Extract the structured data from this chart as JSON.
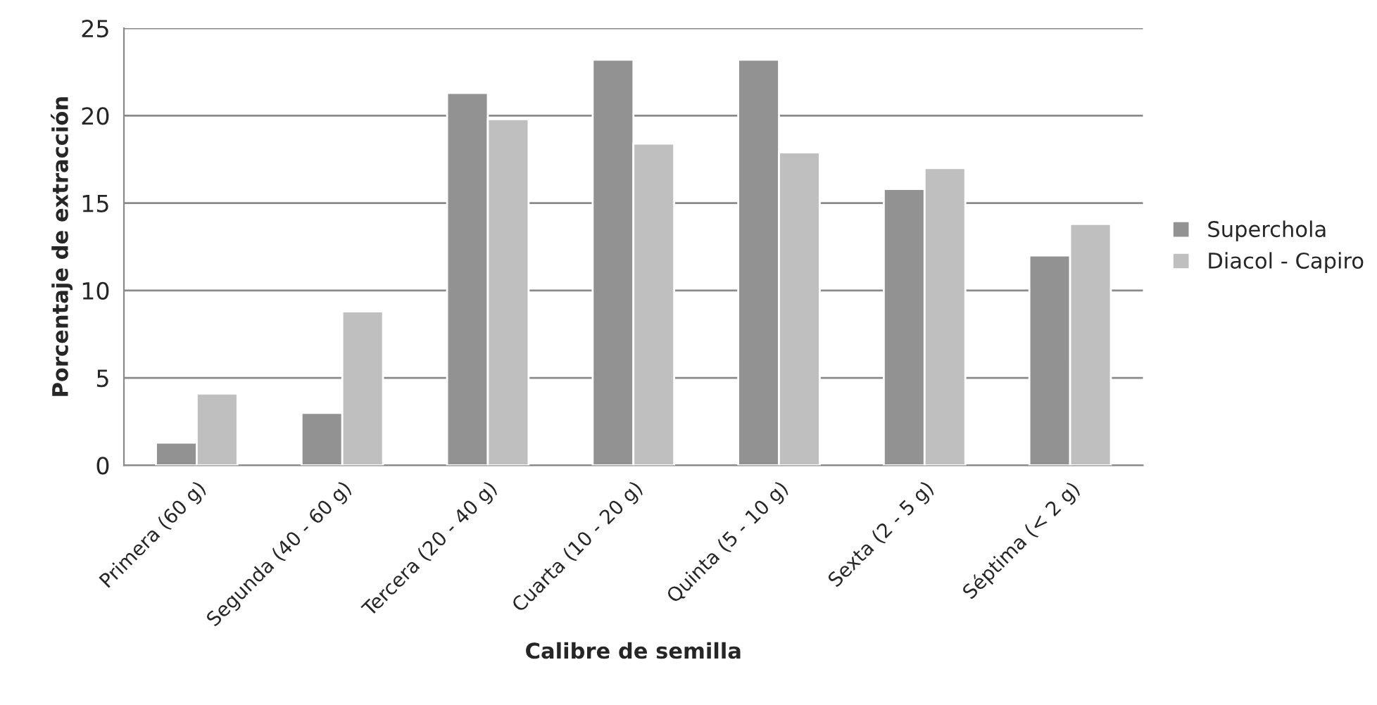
{
  "chart_data": {
    "type": "bar",
    "xlabel": "Calibre de semilla",
    "ylabel": "Porcentaje de extracción",
    "categories": [
      "Primera (60 g)",
      "Segunda (40 - 60 g)",
      "Tercera (20 - 40 g)",
      "Cuarta (10 - 20 g)",
      "Quinta (5 - 10 g)",
      "Sexta (2 - 5 g)",
      "Séptima (< 2 g)"
    ],
    "series": [
      {
        "name": "Superchola",
        "color": "#929292",
        "values": [
          1.3,
          3.0,
          21.3,
          23.2,
          23.2,
          15.8,
          12.0
        ]
      },
      {
        "name": "Diacol - Capiro",
        "color": "#bfbfbf",
        "values": [
          4.1,
          8.8,
          19.8,
          18.4,
          17.9,
          17.0,
          13.8
        ]
      }
    ],
    "ylim": [
      0,
      25
    ],
    "yticks": [
      0,
      5,
      10,
      15,
      20,
      25
    ],
    "grid": "y",
    "legend": "right"
  }
}
